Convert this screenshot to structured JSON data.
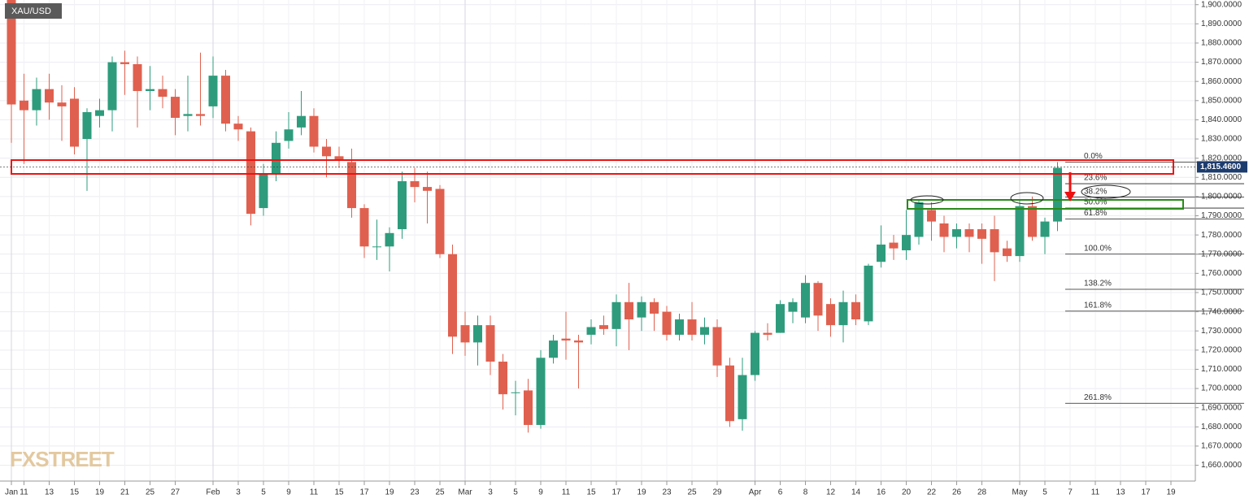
{
  "chart_data": {
    "type": "candlestick",
    "title": "XAU/USD",
    "watermark": "FXSTREET",
    "up_color": "#2e9c7c",
    "down_color": "#e0604f",
    "grid": true,
    "categories": [
      "Jan",
      "11",
      null,
      "13",
      null,
      "15",
      null,
      "19",
      null,
      "21",
      null,
      "25",
      null,
      "27",
      null,
      null,
      "Feb",
      null,
      "3",
      null,
      "5",
      null,
      "9",
      null,
      "11",
      null,
      "15",
      null,
      "17",
      null,
      "19",
      null,
      "23",
      null,
      "25",
      null,
      "Mar",
      null,
      "3",
      null,
      "5",
      null,
      "9",
      null,
      "11",
      null,
      "15",
      null,
      "17",
      null,
      "19",
      null,
      "23",
      null,
      "25",
      null,
      "29",
      null,
      null,
      "Apr",
      null,
      "6",
      null,
      "8",
      null,
      "12",
      null,
      "14",
      null,
      "16",
      null,
      "20",
      null,
      "22",
      null,
      "26",
      null,
      "28",
      null,
      null,
      "May",
      null,
      "5",
      null,
      "7",
      null,
      "11",
      null,
      "13",
      null,
      "17",
      null,
      "19"
    ],
    "open": [
      1913,
      1850,
      1845,
      1856,
      1849,
      1851,
      1830,
      1842,
      1845,
      1870,
      1869,
      1855,
      1856,
      1852,
      1842,
      1843,
      1847,
      1863,
      1838,
      1834,
      1794,
      1812,
      1829,
      1836,
      1842,
      1826,
      1821,
      1818,
      1794,
      1774,
      1774,
      1783,
      1808,
      1805,
      1804,
      1770,
      1733,
      1724,
      1733,
      1714,
      1698,
      1699,
      1681,
      1716,
      1726,
      1725,
      1728,
      1733,
      1731,
      1745,
      1737,
      1745,
      1740,
      1728,
      1736,
      1728,
      1732,
      1712,
      1684,
      1707,
      1729,
      1729,
      1740,
      1737,
      1755,
      1744,
      1733,
      1745,
      1735,
      1766,
      1776,
      1772,
      1779,
      1793,
      1786,
      1779,
      1783,
      1783,
      1783,
      1773,
      1769,
      1795,
      1779,
      1787,
      null,
      null,
      null,
      null,
      null,
      null,
      null,
      null,
      null
    ],
    "high": [
      1917,
      1864,
      1862,
      1864,
      1858,
      1857,
      1846,
      1851,
      1873,
      1876,
      1873,
      1868,
      1863,
      1856,
      1863,
      1875,
      1873,
      1866,
      1842,
      1836,
      1817,
      1834,
      1844,
      1855,
      1846,
      1830,
      1826,
      1825,
      1796,
      1788,
      1784,
      1813,
      1815,
      1813,
      1806,
      1775,
      1740,
      1738,
      1738,
      1718,
      1704,
      1705,
      1720,
      1728,
      1740,
      1728,
      1736,
      1738,
      1749,
      1755,
      1748,
      1747,
      1743,
      1739,
      1745,
      1737,
      1736,
      1716,
      1716,
      1730,
      1734,
      1746,
      1747,
      1759,
      1756,
      1747,
      1751,
      1749,
      1765,
      1785,
      1780,
      1793,
      1798,
      1797,
      1790,
      1786,
      1786,
      1786,
      1790,
      1777,
      1798,
      1800,
      1789,
      1818,
      null,
      null,
      null,
      null,
      null,
      null,
      null,
      null,
      null
    ],
    "low": [
      1828,
      1817,
      1837,
      1840,
      1829,
      1822,
      1803,
      1836,
      1834,
      1853,
      1836,
      1845,
      1846,
      1832,
      1834,
      1837,
      1841,
      1834,
      1829,
      1785,
      1790,
      1808,
      1825,
      1832,
      1823,
      1810,
      1815,
      1789,
      1768,
      1767,
      1761,
      1778,
      1797,
      1786,
      1768,
      1718,
      1717,
      1712,
      1707,
      1689,
      1686,
      1677,
      1679,
      1713,
      1715,
      1700,
      1723,
      1728,
      1722,
      1720,
      1730,
      1730,
      1725,
      1725,
      1725,
      1723,
      1706,
      1680,
      1678,
      1704,
      1725,
      1729,
      1734,
      1734,
      1730,
      1727,
      1724,
      1733,
      1733,
      1763,
      1767,
      1767,
      1775,
      1777,
      1771,
      1773,
      1771,
      1765,
      1756,
      1766,
      1766,
      1777,
      1770,
      1782,
      null,
      null,
      null,
      null,
      null,
      null,
      null,
      null,
      null
    ],
    "close": [
      1848,
      1845,
      1856,
      1849,
      1847,
      1826,
      1844,
      1845,
      1870,
      1869,
      1855,
      1856,
      1852,
      1841,
      1843,
      1842,
      1863,
      1838,
      1835,
      1791,
      1812,
      1828,
      1835,
      1842,
      1826,
      1821,
      1819,
      1794,
      1774,
      1774,
      1781,
      1808,
      1805,
      1803,
      1770,
      1727,
      1724,
      1733,
      1714,
      1697,
      1698,
      1681,
      1716,
      1725,
      1725,
      1724,
      1732,
      1731,
      1745,
      1736,
      1745,
      1739,
      1728,
      1736,
      1728,
      1732,
      1712,
      1683,
      1707,
      1729,
      1728,
      1744,
      1745,
      1755,
      1738,
      1733,
      1745,
      1736,
      1764,
      1775,
      1773,
      1780,
      1797,
      1787,
      1779,
      1783,
      1779,
      1778,
      1771,
      1769,
      1795,
      1779,
      1787,
      1815,
      null,
      null,
      null,
      null,
      null,
      null,
      null,
      null,
      null
    ],
    "ylim": [
      1656,
      1902
    ],
    "yticks": [
      {
        "value": 1660,
        "label": "1,660.0000"
      },
      {
        "value": 1670,
        "label": "1,670.0000"
      },
      {
        "value": 1680,
        "label": "1,680.0000"
      },
      {
        "value": 1690,
        "label": "1,690.0000"
      },
      {
        "value": 1700,
        "label": "1,700.0000"
      },
      {
        "value": 1710,
        "label": "1,710.0000"
      },
      {
        "value": 1720,
        "label": "1,720.0000"
      },
      {
        "value": 1730,
        "label": "1,730.0000"
      },
      {
        "value": 1740,
        "label": "1,740.0000"
      },
      {
        "value": 1750,
        "label": "1,750.0000"
      },
      {
        "value": 1760,
        "label": "1,760.0000"
      },
      {
        "value": 1770,
        "label": "1,770.0000"
      },
      {
        "value": 1780,
        "label": "1,780.0000"
      },
      {
        "value": 1790,
        "label": "1,790.0000"
      },
      {
        "value": 1800,
        "label": "1,800.0000"
      },
      {
        "value": 1810,
        "label": "1,810.0000"
      },
      {
        "value": 1820,
        "label": "1,820.0000"
      },
      {
        "value": 1830,
        "label": "1,830.0000"
      },
      {
        "value": 1840,
        "label": "1,840.0000"
      },
      {
        "value": 1850,
        "label": "1,850.0000"
      },
      {
        "value": 1860,
        "label": "1,860.0000"
      },
      {
        "value": 1870,
        "label": "1,870.0000"
      },
      {
        "value": 1880,
        "label": "1,880.0000"
      },
      {
        "value": 1890,
        "label": "1,890.0000"
      },
      {
        "value": 1900,
        "label": "1,900.0000"
      }
    ],
    "current_price": {
      "value": 1815.46,
      "label": "1,815.4600"
    },
    "fib_levels": [
      {
        "label": "0.0%",
        "price": 1818
      },
      {
        "label": "23.6%",
        "price": 1806.7
      },
      {
        "label": "38.2%",
        "price": 1799.7
      },
      {
        "label": "50.0%",
        "price": 1794
      },
      {
        "label": "61.8%",
        "price": 1788.3
      },
      {
        "label": "100.0%",
        "price": 1770
      },
      {
        "label": "138.2%",
        "price": 1751.7
      },
      {
        "label": "161.8%",
        "price": 1740.3
      },
      {
        "label": "261.8%",
        "price": 1692.3
      }
    ]
  }
}
